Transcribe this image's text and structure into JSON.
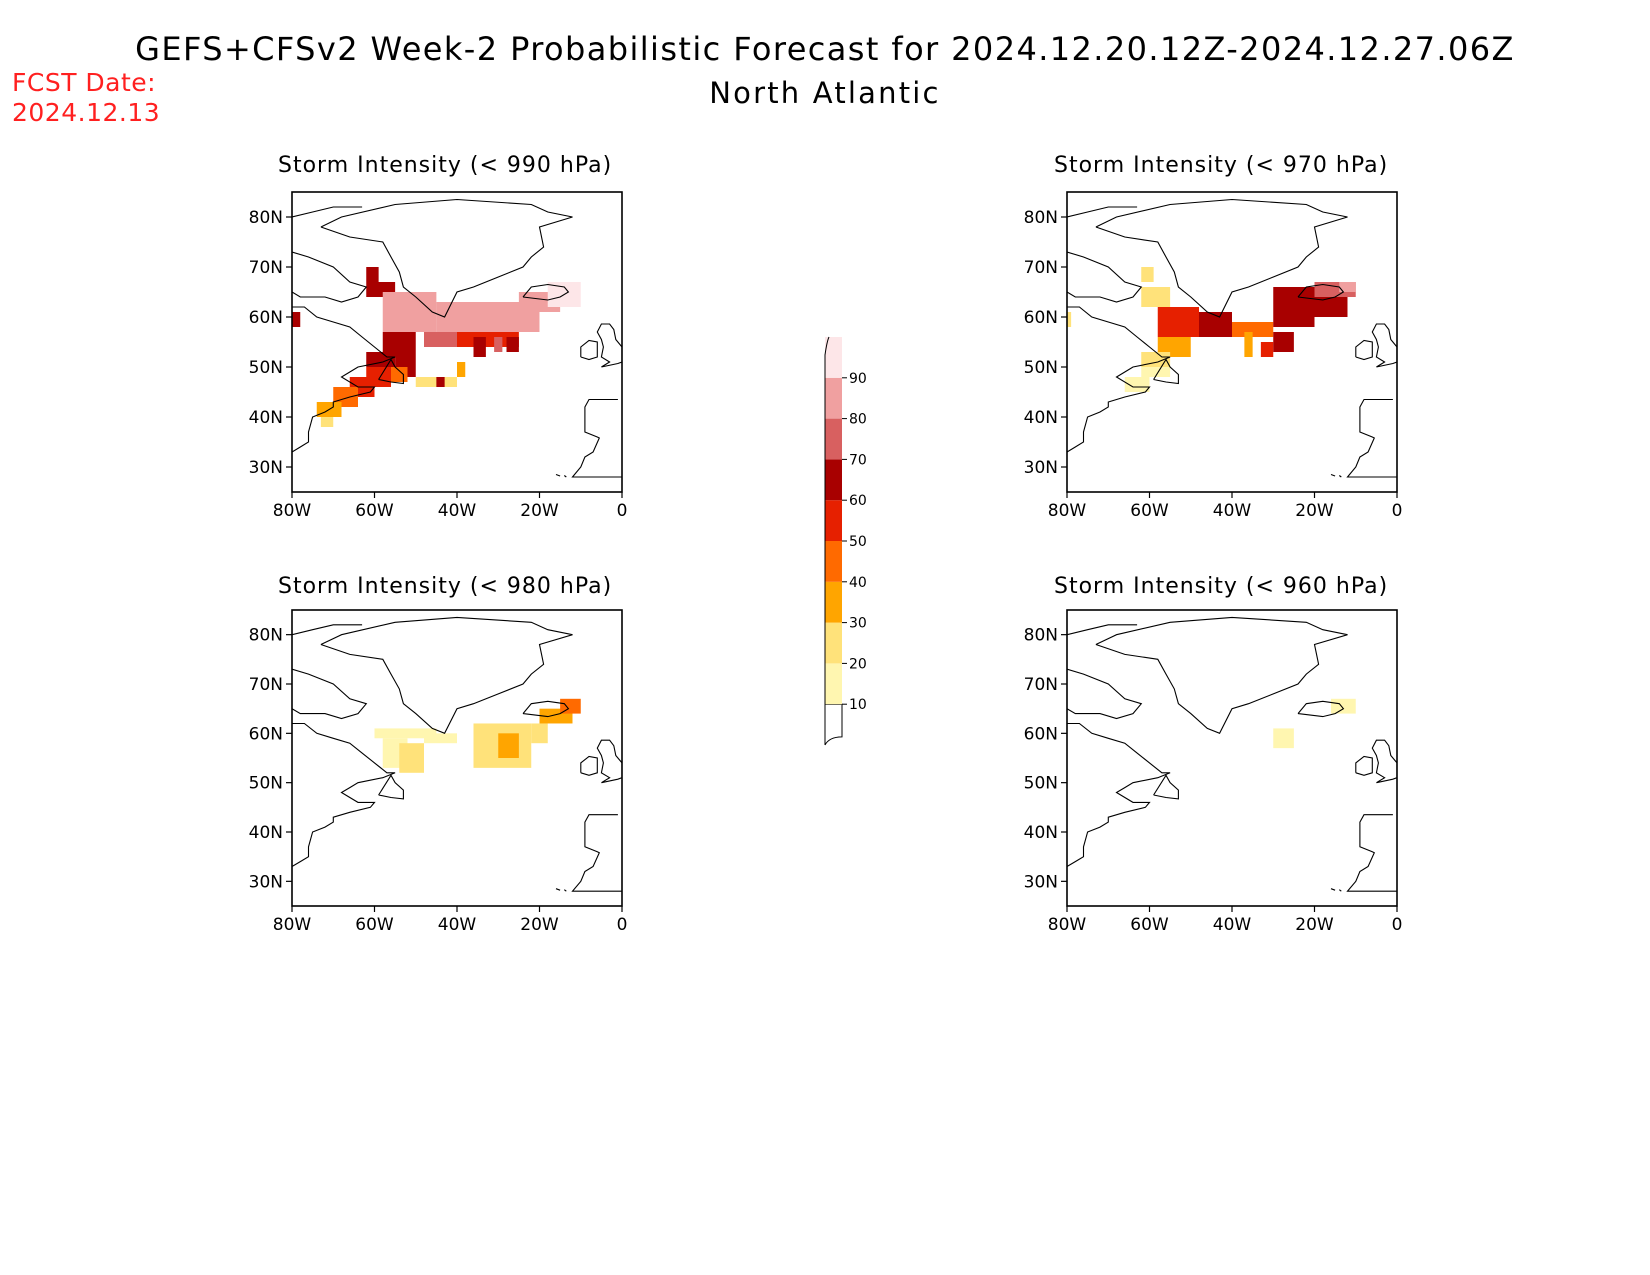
{
  "title": "GEFS+CFSv2 Week-2 Probabilistic Forecast for 2024.12.20.12Z-2024.12.27.06Z",
  "subtitle": "North Atlantic",
  "fcst_date_label": "FCST Date:",
  "fcst_date": "2024.12.13",
  "lat_ticks": [
    "80N",
    "70N",
    "60N",
    "50N",
    "40N",
    "30N"
  ],
  "lon_ticks": [
    "80W",
    "60W",
    "40W",
    "20W",
    "0"
  ],
  "panels": [
    {
      "id": "p990",
      "title": "Storm Intensity (< 990 hPa)"
    },
    {
      "id": "p970",
      "title": "Storm Intensity (< 970 hPa)"
    },
    {
      "id": "p980",
      "title": "Storm Intensity (< 980 hPa)"
    },
    {
      "id": "p960",
      "title": "Storm Intensity (< 960 hPa)"
    }
  ],
  "colorbar": {
    "levels": [
      "10",
      "20",
      "30",
      "40",
      "50",
      "60",
      "70",
      "80",
      "90"
    ],
    "colors": [
      "#fff6b0",
      "#ffe27a",
      "#ffa500",
      "#ff6a00",
      "#e62000",
      "#a80000",
      "#d86060",
      "#f0a0a0",
      "#fde6e8"
    ]
  },
  "chart_data": {
    "type": "heatmap",
    "units": "probability (%)",
    "lon_range": [
      -80,
      0
    ],
    "lat_range": [
      25,
      85
    ],
    "levels": [
      10,
      20,
      30,
      40,
      50,
      60,
      70,
      80,
      90
    ],
    "maps": [
      {
        "panel": "Storm Intensity (< 990 hPa)",
        "cells": [
          [
            -80,
            58,
            -78,
            61,
            60
          ],
          [
            -62,
            64,
            -59,
            70,
            60
          ],
          [
            -60,
            64,
            -55,
            67,
            60
          ],
          [
            -58,
            57,
            -45,
            65,
            80
          ],
          [
            -45,
            57,
            -20,
            63,
            80
          ],
          [
            -25,
            61,
            -15,
            65,
            80
          ],
          [
            -18,
            62,
            -10,
            67,
            90
          ],
          [
            -58,
            52,
            -50,
            57,
            60
          ],
          [
            -48,
            54,
            -40,
            57,
            70
          ],
          [
            -40,
            54,
            -25,
            57,
            50
          ],
          [
            -36,
            52,
            -33,
            56,
            60
          ],
          [
            -31,
            53,
            -29,
            56,
            70
          ],
          [
            -28,
            53,
            -25,
            56,
            60
          ],
          [
            -62,
            50,
            -55,
            53,
            60
          ],
          [
            -55,
            48,
            -50,
            52,
            60
          ],
          [
            -62,
            46,
            -56,
            50,
            50
          ],
          [
            -56,
            47,
            -52,
            50,
            40
          ],
          [
            -66,
            44,
            -60,
            48,
            50
          ],
          [
            -70,
            42,
            -64,
            46,
            40
          ],
          [
            -74,
            40,
            -68,
            43,
            30
          ],
          [
            -73,
            38,
            -70,
            40,
            20
          ],
          [
            -50,
            46,
            -40,
            48,
            20
          ],
          [
            -45,
            46,
            -43,
            48,
            60
          ],
          [
            -40,
            48,
            -38,
            51,
            30
          ]
        ]
      },
      {
        "panel": "Storm Intensity (< 980 hPa)",
        "cells": [
          [
            -62,
            67,
            -59,
            70,
            20
          ],
          [
            -62,
            62,
            -55,
            66,
            20
          ],
          [
            -80,
            58,
            -79,
            61,
            20
          ],
          [
            -58,
            56,
            -48,
            62,
            50
          ],
          [
            -48,
            56,
            -40,
            61,
            60
          ],
          [
            -40,
            56,
            -30,
            59,
            40
          ],
          [
            -37,
            52,
            -35,
            57,
            30
          ],
          [
            -33,
            52,
            -30,
            55,
            50
          ],
          [
            -30,
            53,
            -25,
            57,
            60
          ],
          [
            -30,
            58,
            -20,
            66,
            60
          ],
          [
            -20,
            60,
            -12,
            66,
            60
          ],
          [
            -20,
            64,
            -10,
            67,
            70
          ],
          [
            -14,
            65,
            -10,
            67,
            80
          ],
          [
            -58,
            52,
            -50,
            56,
            30
          ],
          [
            -62,
            50,
            -55,
            53,
            20
          ],
          [
            -62,
            48,
            -55,
            50,
            10
          ],
          [
            -66,
            45,
            -60,
            48,
            10
          ]
        ]
      },
      {
        "panel": "Storm Intensity (< 970 hPa)",
        "cells": [
          [
            -60,
            59,
            -45,
            61,
            10
          ],
          [
            -58,
            53,
            -52,
            59,
            10
          ],
          [
            -54,
            52,
            -48,
            58,
            20
          ],
          [
            -48,
            58,
            -40,
            60,
            10
          ],
          [
            -36,
            53,
            -22,
            62,
            20
          ],
          [
            -30,
            55,
            -25,
            60,
            30
          ],
          [
            -22,
            58,
            -18,
            62,
            20
          ],
          [
            -20,
            62,
            -12,
            65,
            30
          ],
          [
            -15,
            64,
            -10,
            67,
            40
          ]
        ]
      },
      {
        "panel": "Storm Intensity (< 960 hPa)",
        "cells": [
          [
            -30,
            57,
            -25,
            61,
            10
          ],
          [
            -16,
            64,
            -10,
            67,
            10
          ]
        ]
      }
    ]
  }
}
